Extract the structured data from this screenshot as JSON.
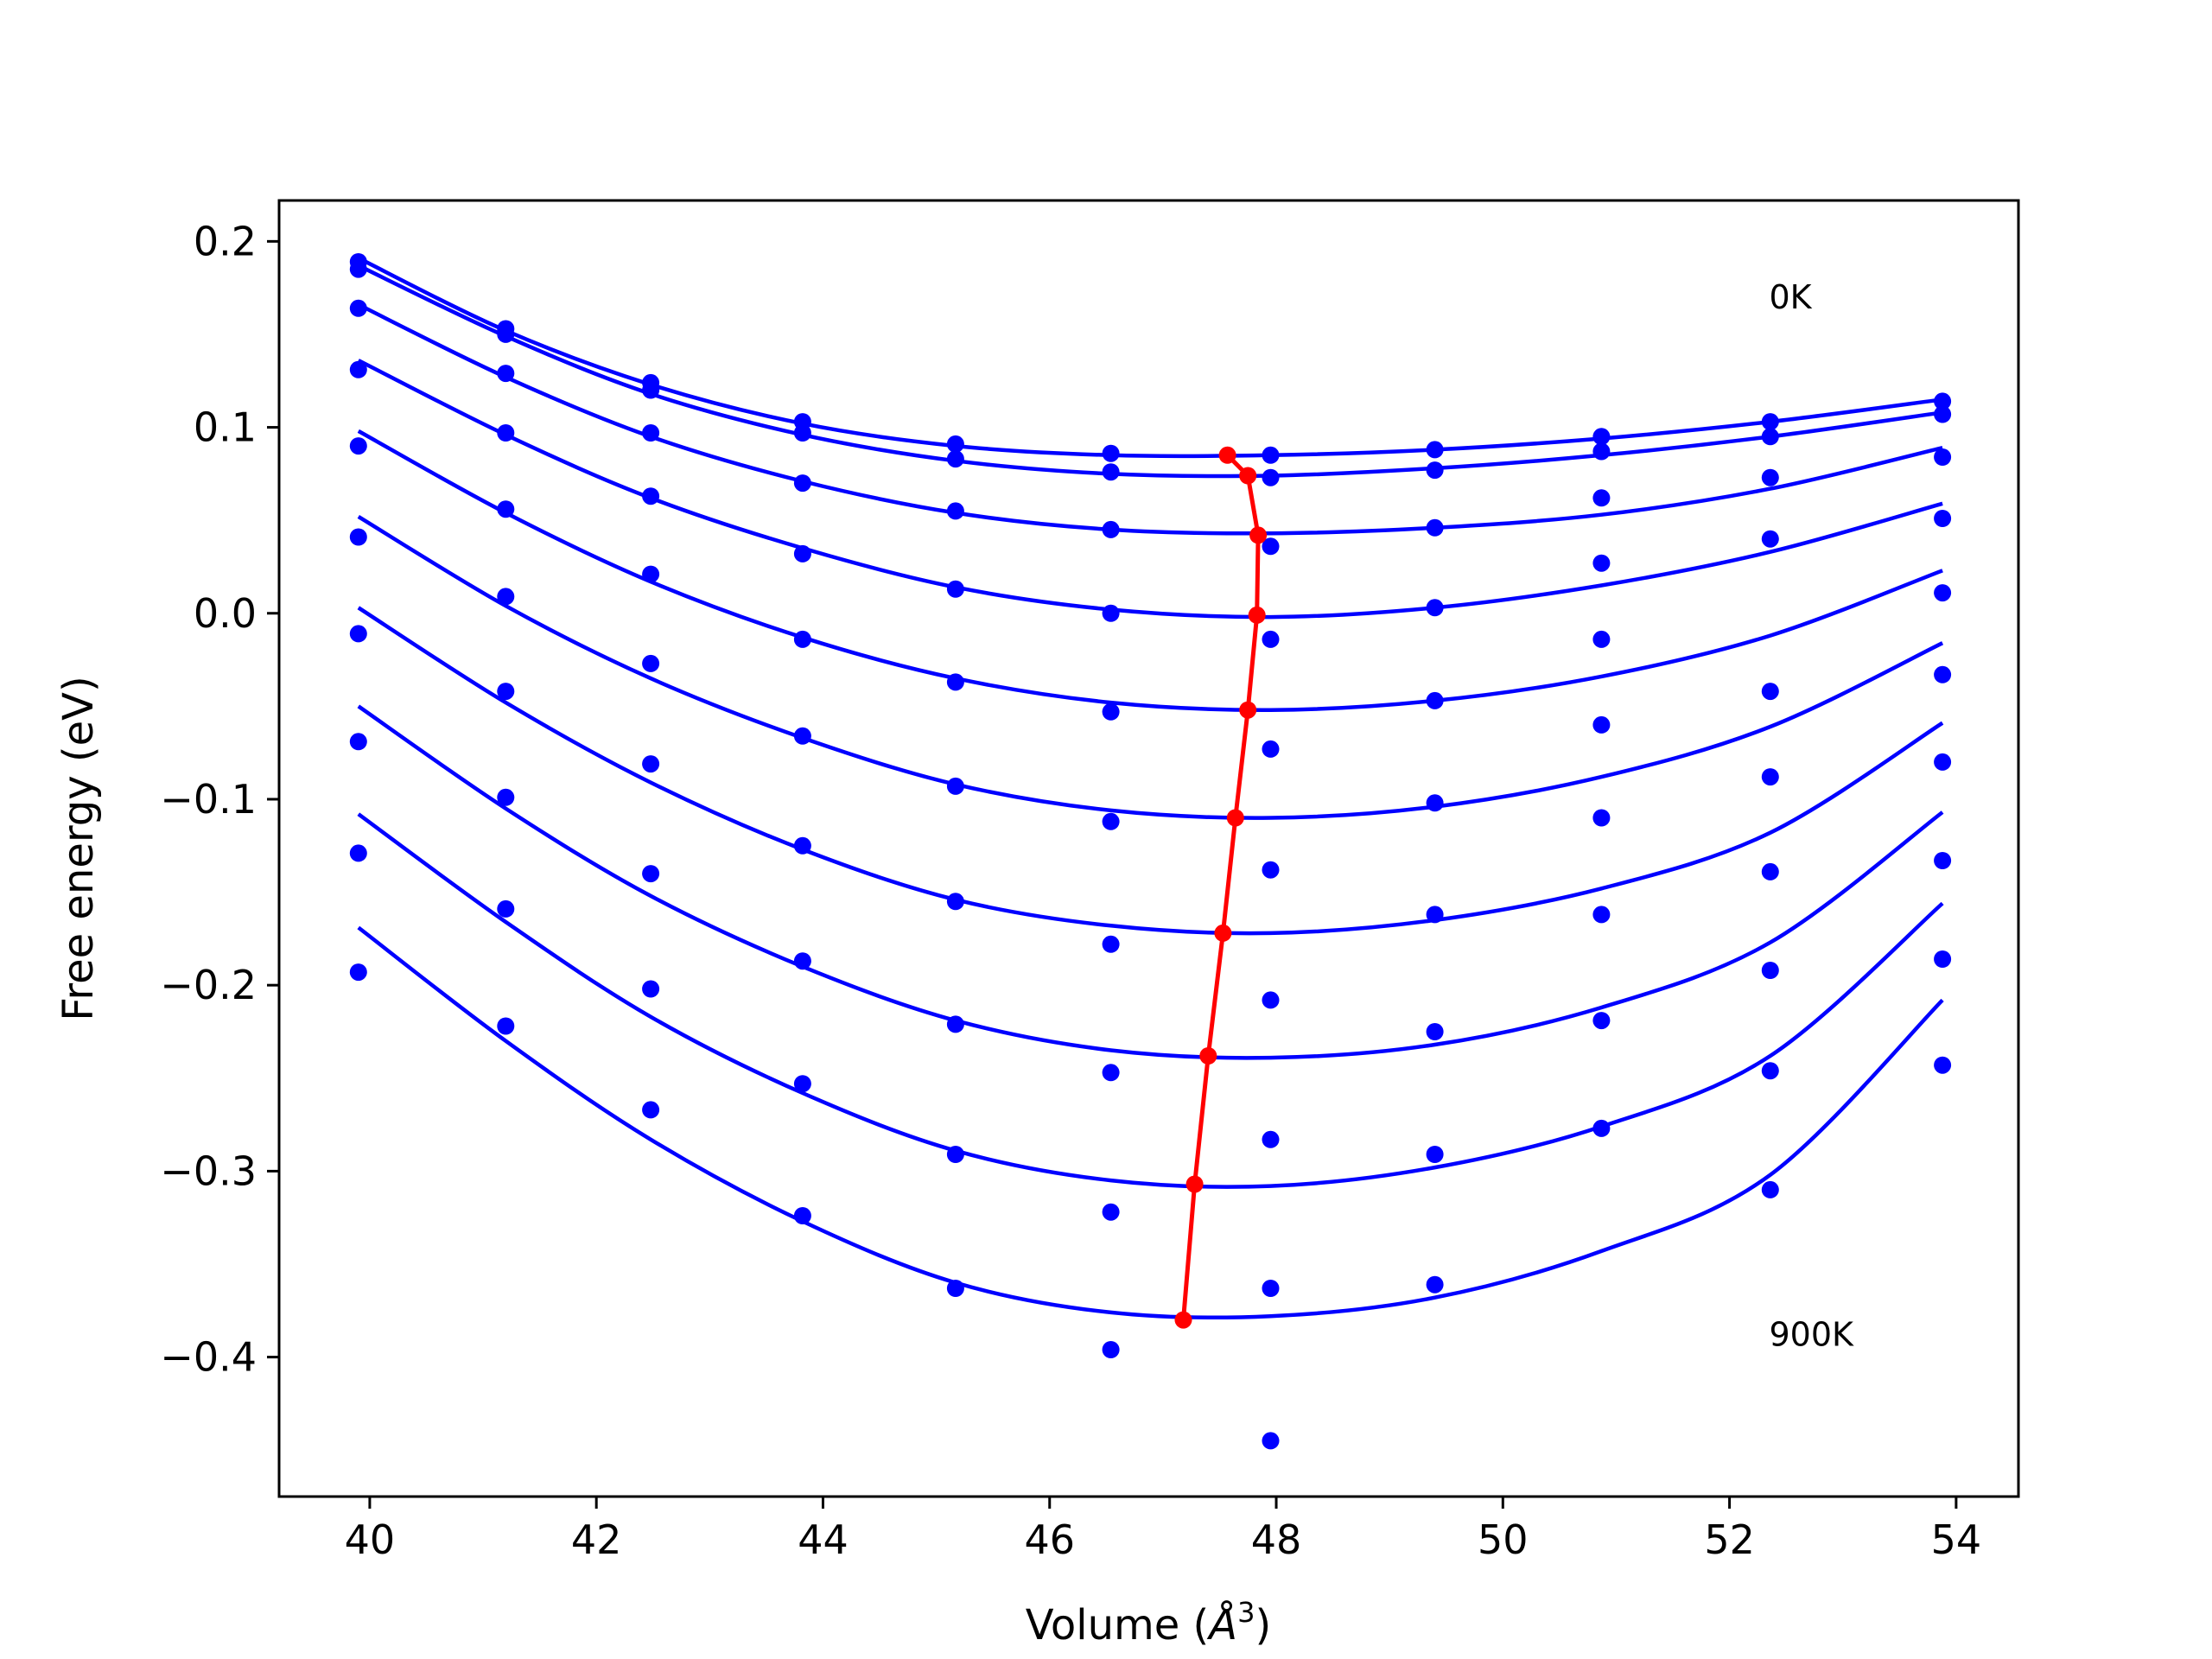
{
  "chart_data": {
    "type": "line",
    "xlabel": "Volume",
    "xlabel_unit": "3",
    "ylabel": "Free energy (eV)",
    "xlim": [
      39.2,
      54.55
    ],
    "ylim": [
      -0.475,
      0.222
    ],
    "x_ticks": [
      40,
      42,
      44,
      46,
      48,
      50,
      52,
      54
    ],
    "x_tick_labels": [
      "40",
      "42",
      "44",
      "46",
      "48",
      "50",
      "52",
      "54"
    ],
    "y_ticks": [
      0.2,
      0.1,
      0.0,
      -0.1,
      -0.2,
      -0.3,
      -0.4
    ],
    "y_tick_labels": [
      "0.2",
      "0.1",
      "0.0",
      "−0.1",
      "−0.2",
      "−0.3",
      "−0.4"
    ],
    "annotations": [
      {
        "text": "0K",
        "x": 52.35,
        "y": 0.164
      },
      {
        "text": "900K",
        "x": 52.35,
        "y": -0.394
      }
    ],
    "grid": false,
    "colors": {
      "fit": "#0000ff",
      "points": "#0000ff",
      "minima": "#ff0000"
    },
    "volumes": [
      39.9,
      41.2,
      42.48,
      43.82,
      45.17,
      46.54,
      47.95,
      49.4,
      50.87,
      52.36,
      53.88
    ],
    "series": [
      {
        "fit": [
          0.191,
          0.152,
          0.123,
          0.102,
          0.09,
          0.085,
          0.085,
          0.088,
          0.094,
          0.103,
          0.115
        ],
        "points": [
          0.189,
          0.153,
          0.124,
          0.103,
          0.091,
          0.086,
          0.085,
          0.088,
          0.095,
          0.103,
          0.114
        ]
      },
      {
        "fit": [
          0.187,
          0.149,
          0.118,
          0.096,
          0.082,
          0.075,
          0.074,
          0.078,
          0.085,
          0.095,
          0.108
        ],
        "points": [
          0.185,
          0.15,
          0.12,
          0.097,
          0.083,
          0.076,
          0.073,
          0.077,
          0.087,
          0.095,
          0.107
        ]
      },
      {
        "fit": [
          0.166,
          0.127,
          0.095,
          0.071,
          0.054,
          0.045,
          0.043,
          0.046,
          0.053,
          0.067,
          0.089
        ],
        "points": [
          0.164,
          0.129,
          0.097,
          0.07,
          0.055,
          0.045,
          0.036,
          0.046,
          0.062,
          0.073,
          0.084
        ]
      },
      {
        "fit": [
          0.136,
          0.096,
          0.062,
          0.035,
          0.014,
          0.002,
          -0.002,
          0.003,
          0.015,
          0.033,
          0.059
        ],
        "points": [
          0.131,
          0.097,
          0.063,
          0.032,
          0.013,
          0.0,
          -0.014,
          0.003,
          0.027,
          0.04,
          0.051
        ]
      },
      {
        "fit": [
          0.098,
          0.054,
          0.017,
          -0.013,
          -0.035,
          -0.048,
          -0.052,
          -0.047,
          -0.034,
          -0.012,
          0.023
        ],
        "points": [
          0.09,
          0.056,
          0.021,
          -0.014,
          -0.037,
          -0.053,
          -0.073,
          -0.047,
          -0.014,
          -0.042,
          0.011
        ]
      },
      {
        "fit": [
          0.052,
          0.004,
          -0.035,
          -0.067,
          -0.092,
          -0.106,
          -0.11,
          -0.104,
          -0.088,
          -0.061,
          -0.016
        ],
        "points": [
          0.041,
          0.009,
          -0.027,
          -0.066,
          -0.093,
          -0.112,
          -0.138,
          -0.102,
          -0.06,
          -0.088,
          -0.033
        ]
      },
      {
        "fit": [
          0.003,
          -0.048,
          -0.091,
          -0.127,
          -0.154,
          -0.168,
          -0.172,
          -0.165,
          -0.148,
          -0.118,
          -0.059
        ],
        "points": [
          -0.011,
          -0.042,
          -0.081,
          -0.125,
          -0.155,
          -0.178,
          -0.208,
          -0.162,
          -0.11,
          -0.139,
          -0.08
        ]
      },
      {
        "fit": [
          -0.05,
          -0.105,
          -0.152,
          -0.19,
          -0.219,
          -0.235,
          -0.239,
          -0.232,
          -0.212,
          -0.177,
          -0.107
        ],
        "points": [
          -0.069,
          -0.099,
          -0.14,
          -0.187,
          -0.221,
          -0.247,
          -0.283,
          -0.225,
          -0.162,
          -0.192,
          -0.133
        ]
      },
      {
        "fit": [
          -0.108,
          -0.166,
          -0.217,
          -0.258,
          -0.289,
          -0.305,
          -0.308,
          -0.298,
          -0.276,
          -0.238,
          -0.156
        ],
        "points": [
          -0.129,
          -0.159,
          -0.202,
          -0.253,
          -0.291,
          -0.322,
          -0.363,
          -0.291,
          -0.219,
          -0.246,
          -0.186
        ]
      },
      {
        "fit": [
          -0.169,
          -0.23,
          -0.283,
          -0.327,
          -0.36,
          -0.376,
          -0.378,
          -0.368,
          -0.343,
          -0.302,
          -0.208
        ],
        "points": [
          -0.193,
          -0.222,
          -0.267,
          -0.324,
          -0.363,
          -0.396,
          -0.445,
          -0.361,
          -0.277,
          -0.31,
          -0.243
        ]
      }
    ],
    "minima": {
      "x": [
        47.57,
        47.75,
        47.84,
        47.83,
        47.75,
        47.64,
        47.53,
        47.4,
        47.28,
        47.18
      ],
      "y": [
        0.085,
        0.074,
        0.042,
        -0.001,
        -0.052,
        -0.11,
        -0.172,
        -0.238,
        -0.307,
        -0.38
      ]
    }
  }
}
